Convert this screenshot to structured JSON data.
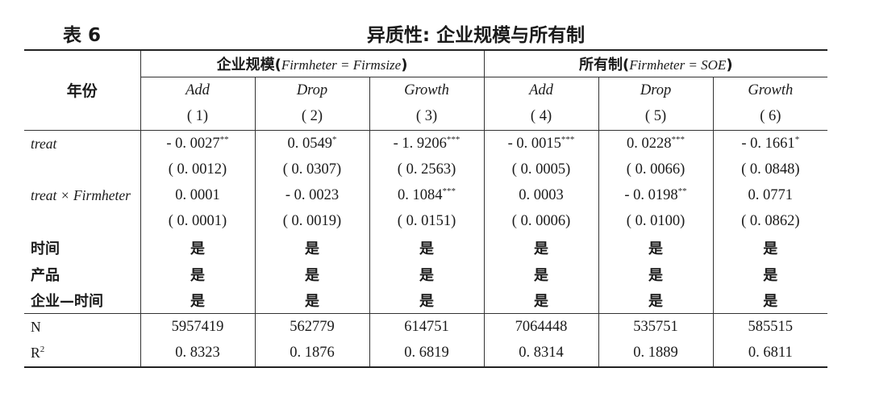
{
  "caption": {
    "number": "表 6",
    "title": "异质性: 企业规模与所有制"
  },
  "header": {
    "year_label": "年份",
    "groups": [
      {
        "label": "企业规模(",
        "formula": "Firmheter = Firmsize",
        "close": ")"
      },
      {
        "label": "所有制(",
        "formula": "Firmheter = SOE",
        "close": ")"
      }
    ],
    "columns": [
      "Add",
      "Drop",
      "Growth",
      "Add",
      "Drop",
      "Growth"
    ],
    "numbers": [
      "( 1)",
      "( 2)",
      "( 3)",
      "( 4)",
      "( 5)",
      "( 6)"
    ]
  },
  "rows": {
    "treat": {
      "label": "treat",
      "coef": [
        "- 0. 0027",
        "0. 0549",
        "- 1. 9206",
        "- 0. 0015",
        "0. 0228",
        "- 0. 1661"
      ],
      "stars": [
        "**",
        "*",
        "***",
        "***",
        "***",
        "*"
      ],
      "se": [
        "( 0. 0012)",
        "( 0. 0307)",
        "( 0. 2563)",
        "( 0. 0005)",
        "( 0. 0066)",
        "( 0. 0848)"
      ]
    },
    "interaction": {
      "label": "treat × Firmheter",
      "coef": [
        "0. 0001",
        "- 0. 0023",
        "0. 1084",
        "0. 0003",
        "- 0. 0198",
        "0. 0771"
      ],
      "stars": [
        "",
        "",
        "***",
        "",
        "**",
        ""
      ],
      "se": [
        "( 0. 0001)",
        "( 0. 0019)",
        "( 0. 0151)",
        "( 0. 0006)",
        "( 0. 0100)",
        "( 0. 0862)"
      ]
    },
    "fixed_effects": [
      {
        "label": "时间",
        "values": [
          "是",
          "是",
          "是",
          "是",
          "是",
          "是"
        ]
      },
      {
        "label": "产品",
        "values": [
          "是",
          "是",
          "是",
          "是",
          "是",
          "是"
        ]
      },
      {
        "label": "企业—时间",
        "values": [
          "是",
          "是",
          "是",
          "是",
          "是",
          "是"
        ]
      }
    ],
    "n": {
      "label": "N",
      "values": [
        "5957419",
        "562779",
        "614751",
        "7064448",
        "535751",
        "585515"
      ]
    },
    "r2": {
      "label": "R",
      "label_sup": "2",
      "values": [
        "0. 8323",
        "0. 1876",
        "0. 6819",
        "0. 8314",
        "0. 1889",
        "0. 6811"
      ]
    }
  }
}
